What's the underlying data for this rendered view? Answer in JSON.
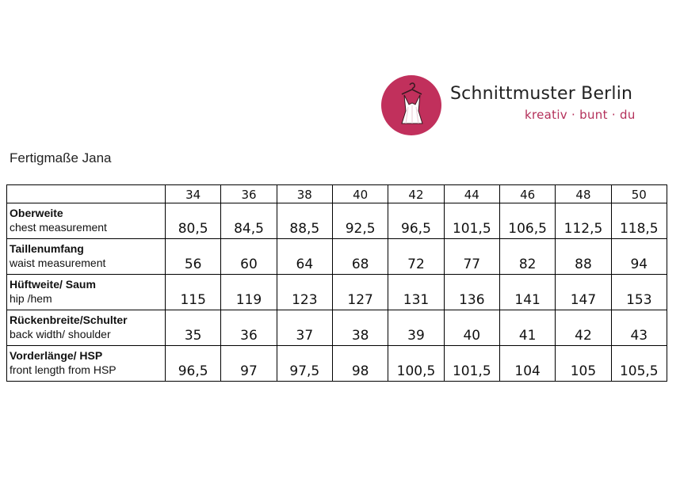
{
  "header": {
    "brand_name": "Schnittmuster Berlin",
    "brand_tagline": "kreativ · bunt · du",
    "logo_icon": "dress-on-hanger-icon",
    "logo_color": "#c1305c"
  },
  "title": "Fertigmaße Jana",
  "table": {
    "sizes": [
      "34",
      "36",
      "38",
      "40",
      "42",
      "44",
      "46",
      "48",
      "50"
    ],
    "rows": [
      {
        "label_de": "Oberweite",
        "label_en": "chest measurement",
        "values": [
          "80,5",
          "84,5",
          "88,5",
          "92,5",
          "96,5",
          "101,5",
          "106,5",
          "112,5",
          "118,5"
        ]
      },
      {
        "label_de": "Taillenumfang",
        "label_en": "waist measurement",
        "values": [
          "56",
          "60",
          "64",
          "68",
          "72",
          "77",
          "82",
          "88",
          "94"
        ]
      },
      {
        "label_de": "Hüftweite/ Saum",
        "label_en": "hip /hem",
        "values": [
          "115",
          "119",
          "123",
          "127",
          "131",
          "136",
          "141",
          "147",
          "153"
        ]
      },
      {
        "label_de": "Rückenbreite/Schulter",
        "label_en": "back width/ shoulder",
        "values": [
          "35",
          "36",
          "37",
          "38",
          "39",
          "40",
          "41",
          "42",
          "43"
        ]
      },
      {
        "label_de": "Vorderlänge/ HSP",
        "label_en": "front length from HSP",
        "values": [
          "96,5",
          "97",
          "97,5",
          "98",
          "100,5",
          "101,5",
          "104",
          "105",
          "105,5"
        ]
      }
    ]
  }
}
